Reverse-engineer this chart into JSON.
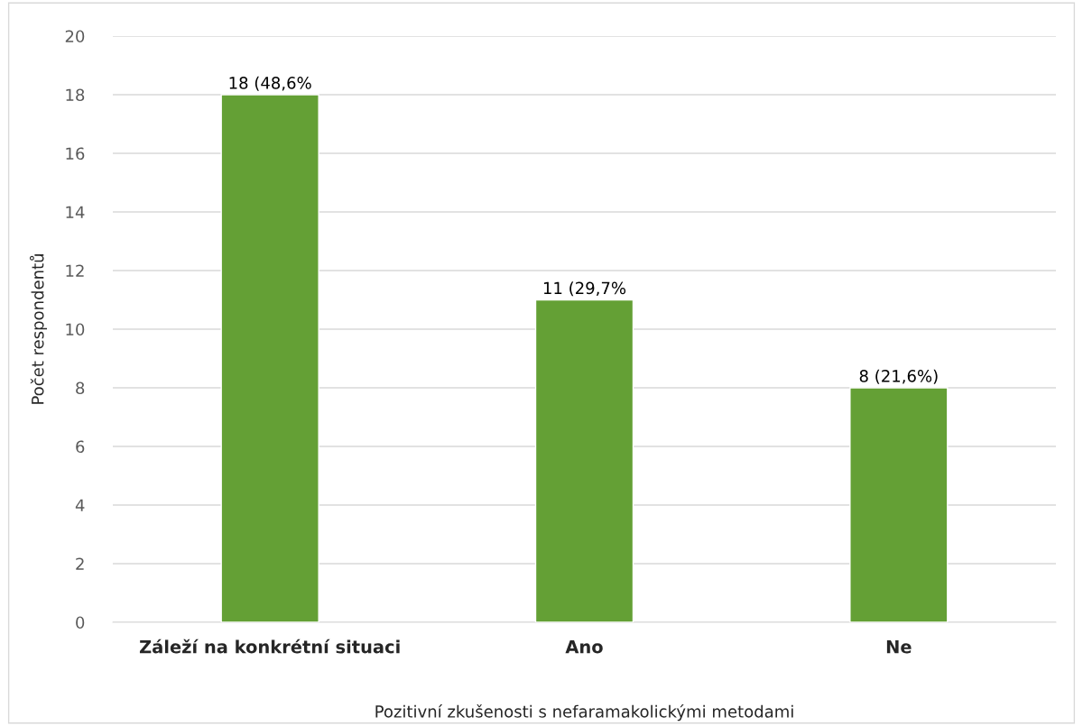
{
  "chart_data": {
    "type": "bar",
    "categories": [
      "Záleží na konkrétní situaci",
      "Ano",
      "Ne"
    ],
    "values": [
      18,
      11,
      8
    ],
    "value_labels": [
      "18 (48,6%",
      "11 (29,7%",
      "8 (21,6%)"
    ],
    "color": "#64a035",
    "xlabel": "Pozitivní zkušenosti s nefaramakolickými metodami",
    "ylabel": "Počet respondentů",
    "ylim": [
      0,
      20
    ],
    "yticks": [
      0,
      2,
      4,
      6,
      8,
      10,
      12,
      14,
      16,
      18,
      20
    ],
    "grid": "y"
  }
}
